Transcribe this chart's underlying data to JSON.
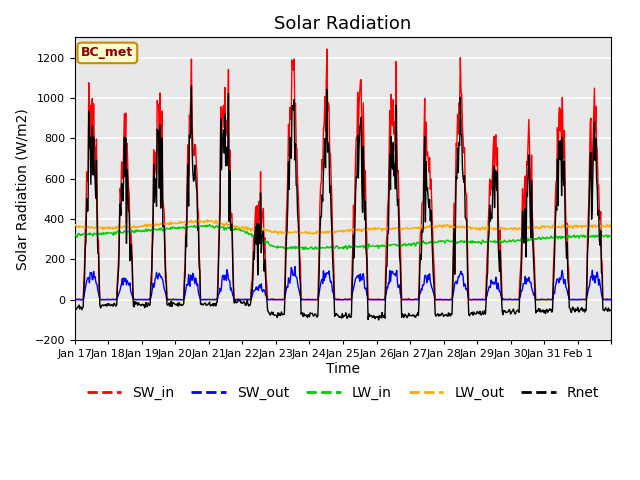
{
  "title": "Solar Radiation",
  "ylabel": "Solar Radiation (W/m2)",
  "xlabel": "Time",
  "ylim": [
    -200,
    1300
  ],
  "yticks": [
    -200,
    0,
    200,
    400,
    600,
    800,
    1000,
    1200
  ],
  "n_days": 16,
  "station_label": "BC_met",
  "legend_entries": [
    "SW_in",
    "SW_out",
    "LW_in",
    "LW_out",
    "Rnet"
  ],
  "line_colors": {
    "SW_in": "#ff0000",
    "SW_out": "#0000ff",
    "LW_in": "#00cc00",
    "LW_out": "#ffaa00",
    "Rnet": "#000000"
  },
  "ax_bg": "#e8e8e8",
  "grid_color": "#ffffff",
  "title_fontsize": 13,
  "axis_fontsize": 10,
  "tick_fontsize": 8,
  "legend_fontsize": 10,
  "line_width": 1.0,
  "xtick_labels": [
    "Jan 17",
    "Jan 18",
    "Jan 19",
    "Jan 20",
    "Jan 21",
    "Jan 22",
    "Jan 23",
    "Jan 24",
    "Jan 25",
    "Jan 26",
    "Jan 27",
    "Jan 28",
    "Jan 29",
    "Jan 30",
    "Jan 31",
    "Feb 1",
    ""
  ],
  "sw_in_peaks": [
    1160,
    860,
    1000,
    1060,
    1100,
    600,
    1180,
    1160,
    1180,
    1190,
    950,
    1170,
    840,
    820,
    1050,
    1130
  ],
  "lw_in_vals": [
    320,
    330,
    340,
    355,
    365,
    345,
    260,
    255,
    260,
    265,
    275,
    290,
    285,
    290,
    305,
    315,
    315
  ],
  "lw_out_vals": [
    360,
    355,
    365,
    380,
    390,
    355,
    335,
    330,
    340,
    350,
    355,
    365,
    355,
    350,
    360,
    365,
    365
  ]
}
